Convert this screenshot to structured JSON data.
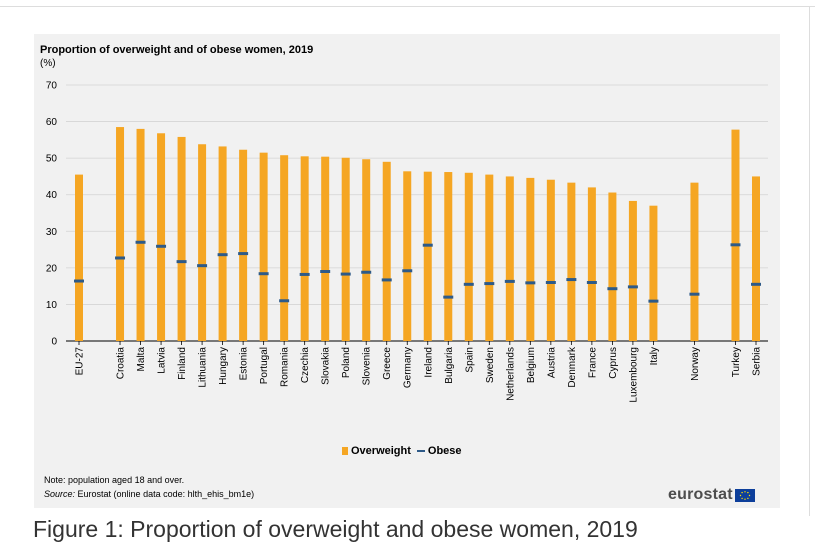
{
  "chart_data": {
    "type": "bar",
    "title": "Proportion of overweight and of obese women, 2019",
    "ylabel": "(%)",
    "ylim": [
      0,
      70
    ],
    "yticks": [
      0,
      10,
      20,
      30,
      40,
      50,
      60,
      70
    ],
    "grid": true,
    "legend_position": "bottom-center",
    "categories": [
      "EU-27",
      "Croatia",
      "Malta",
      "Latvia",
      "Finland",
      "Lithuania",
      "Hungary",
      "Estonia",
      "Portugal",
      "Romania",
      "Czechia",
      "Slovakia",
      "Poland",
      "Slovenia",
      "Greece",
      "Germany",
      "Ireland",
      "Bulgaria",
      "Spain",
      "Sweden",
      "Netherlands",
      "Belgium",
      "Austria",
      "Denmark",
      "France",
      "Cyprus",
      "Luxembourg",
      "Italy",
      "Norway",
      "Turkey",
      "Serbia"
    ],
    "groups_after": [
      0,
      27,
      28
    ],
    "series": [
      {
        "name": "Overweight",
        "mark": "bar",
        "color": "#f5a623",
        "values": [
          45.5,
          58.5,
          58,
          56.8,
          55.8,
          53.8,
          53.2,
          52.3,
          51.5,
          50.8,
          50.5,
          50.4,
          50.1,
          49.7,
          49,
          46.4,
          46.3,
          46.2,
          46,
          45.5,
          45,
          44.6,
          44.1,
          43.3,
          42,
          40.6,
          38.3,
          37,
          43.3,
          57.8,
          45
        ]
      },
      {
        "name": "Obese",
        "mark": "line-marker",
        "color": "#2e5a88",
        "values": [
          16.4,
          22.7,
          27,
          25.9,
          21.7,
          20.6,
          23.6,
          23.9,
          18.4,
          11,
          18.2,
          19,
          18.3,
          18.8,
          16.7,
          19.2,
          26.2,
          12,
          15.5,
          15.7,
          16.3,
          15.9,
          16,
          16.8,
          16,
          14.3,
          14.8,
          10.9,
          12.8,
          26.3,
          15.5
        ]
      }
    ]
  },
  "legend": {
    "overweight_label": "Overweight",
    "obese_label": "Obese"
  },
  "footer": {
    "note": "Note: population aged 18 and over.",
    "source_prefix": "Source:",
    "source_text": " Eurostat (online data code: hlth_ehis_bm1e)",
    "logo_text": "eurostat"
  },
  "caption": "Figure 1: Proportion of overweight and obese women, 2019"
}
